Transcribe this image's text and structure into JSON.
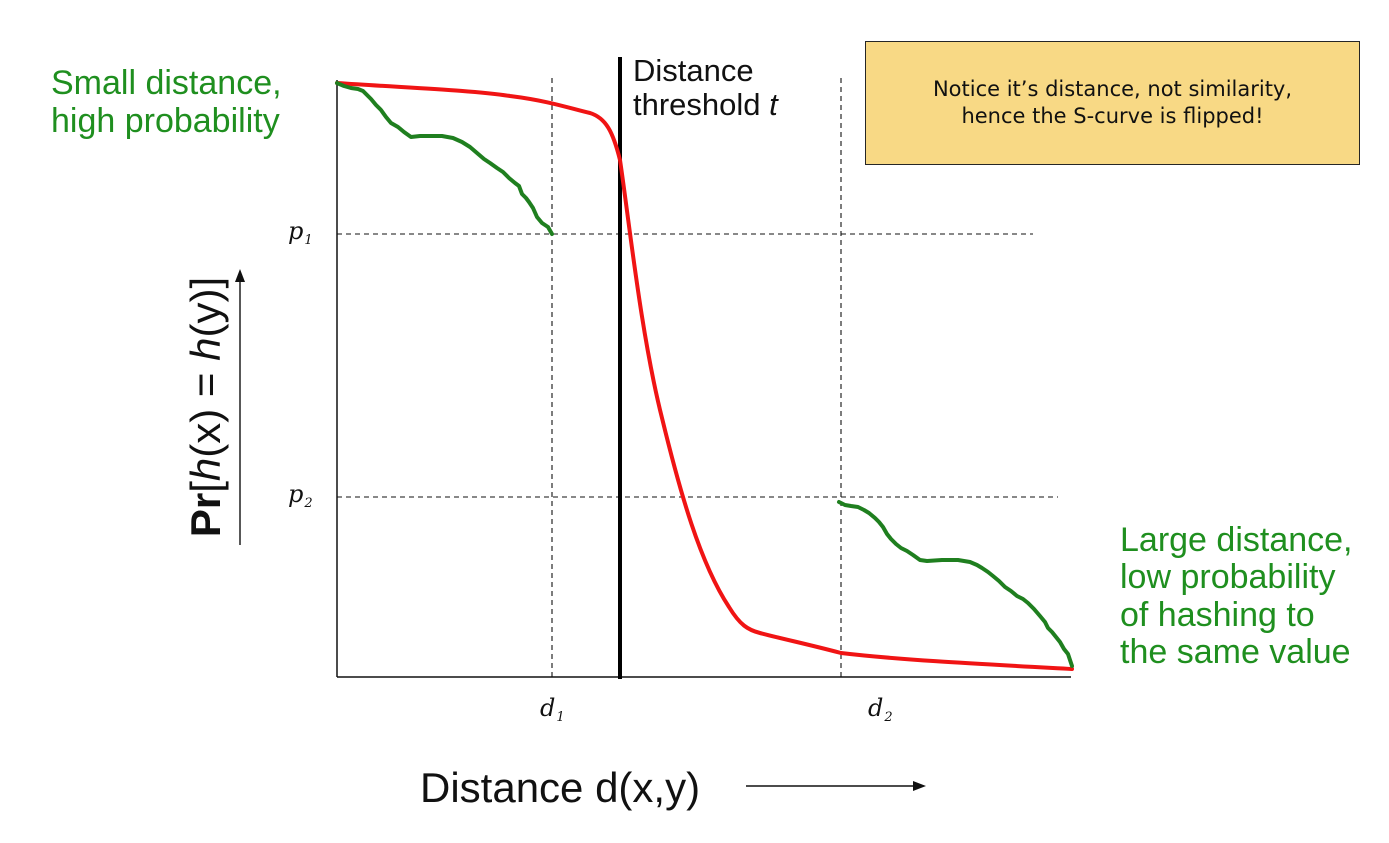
{
  "note_box": {
    "line1": "Notice it’s distance, not similarity,",
    "line2": "hence the S-curve is flipped!"
  },
  "annotations": {
    "small_distance": [
      "Small distance,",
      "high probability"
    ],
    "large_distance": [
      "Large distance,",
      "low probability",
      "of hashing to",
      "the same value"
    ],
    "threshold": {
      "line1": "Distance",
      "line2_prefix": "threshold ",
      "line2_var": "t"
    }
  },
  "axes": {
    "x_title": "Distance d(x,y)",
    "y_title": {
      "pr": "Pr",
      "open": "[",
      "h1": "h",
      "mid": "(x) = ",
      "h2": "h",
      "close": "(y)]"
    }
  },
  "markers": {
    "p1": {
      "base": "p",
      "sub": "1"
    },
    "p2": {
      "base": "p",
      "sub": "2"
    },
    "d1": {
      "base": "d",
      "sub": "1"
    },
    "d2": {
      "base": "d",
      "sub": "2"
    }
  },
  "colors": {
    "red_curve": "#f01414",
    "green_curve": "#1f7f1f",
    "green_text": "#1f8f1f",
    "note_fill": "#f8d985",
    "axis": "#111111"
  }
}
